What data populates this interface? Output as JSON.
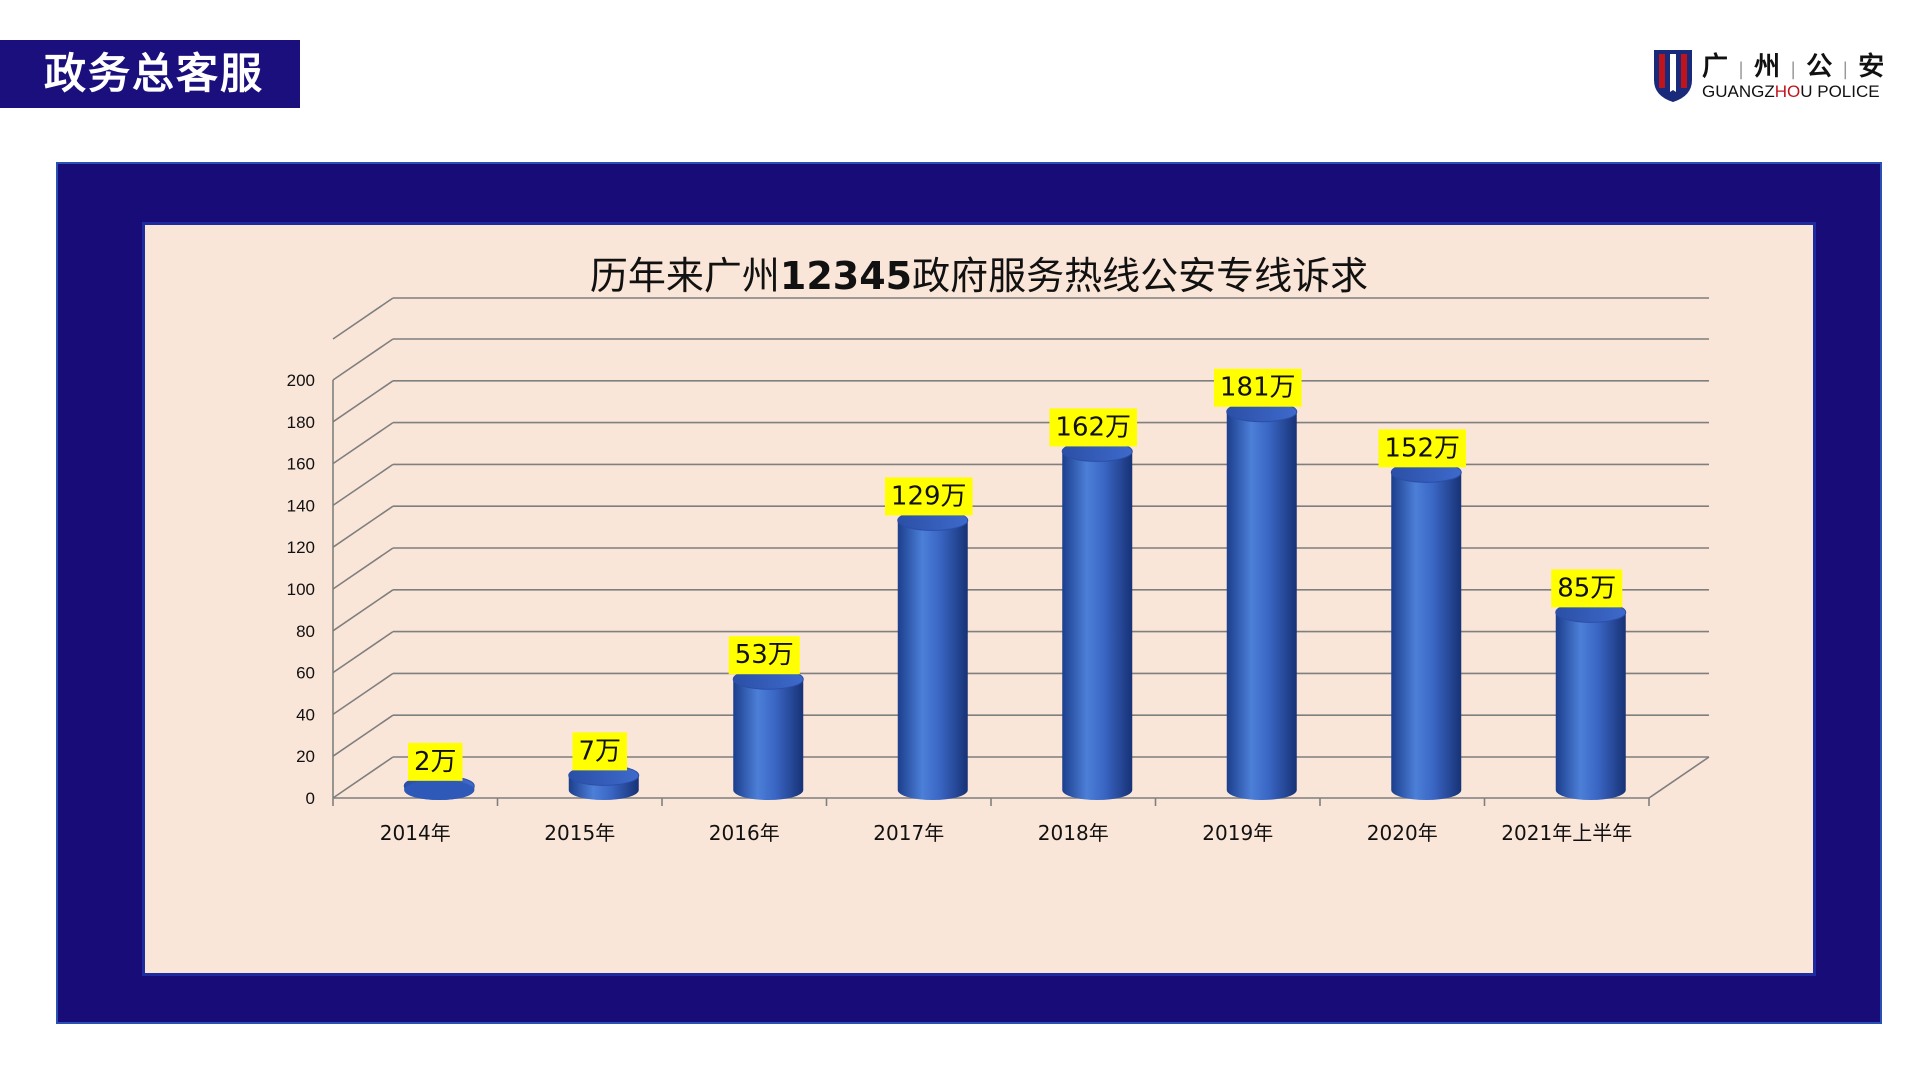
{
  "header": {
    "section_title": "政务总客服"
  },
  "logo": {
    "name_cn": [
      "广",
      "州",
      "公",
      "安"
    ],
    "name_en_parts": [
      "GUANGZ",
      "HO",
      "U POLICE"
    ]
  },
  "colors": {
    "navy": "#1a0f7d",
    "panel_bg": "#fae6d8",
    "bar_blue": "#3a66c4",
    "label_bg": "#ffff00",
    "logo_red": "#c0141c"
  },
  "chart_data": {
    "type": "bar",
    "style": "3d-cylinder",
    "title": "历年来广州12345政府服务热线公安专线诉求",
    "title_parts": [
      "历年来广州",
      "12345",
      "政府服务热线公安专线诉求"
    ],
    "categories": [
      "2014年",
      "2015年",
      "2016年",
      "2017年",
      "2018年",
      "2019年",
      "2020年",
      "2021年上半年"
    ],
    "values": [
      2,
      7,
      53,
      129,
      162,
      181,
      152,
      85
    ],
    "data_labels": [
      "2万",
      "7万",
      "53万",
      "129万",
      "162万",
      "181万",
      "152万",
      "85万"
    ],
    "ylim": [
      0,
      200
    ],
    "y_ticks": [
      0,
      20,
      40,
      60,
      80,
      100,
      120,
      140,
      160,
      180,
      200
    ],
    "grid": true,
    "legend": "none"
  }
}
